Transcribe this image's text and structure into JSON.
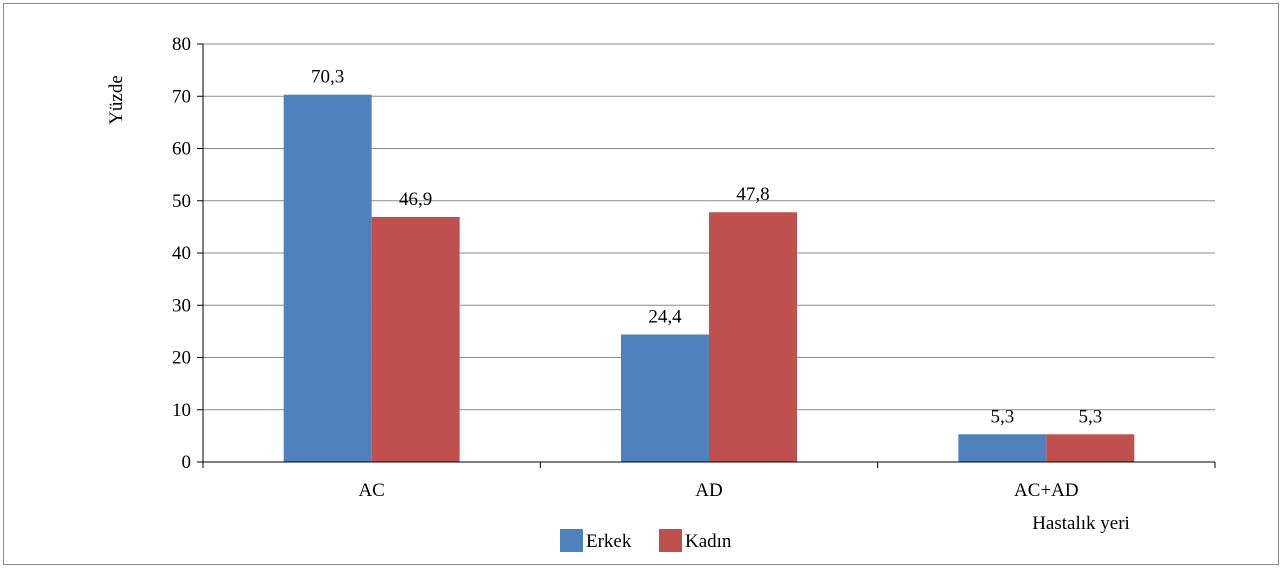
{
  "chart_data": {
    "type": "bar",
    "categories": [
      "AC",
      "AD",
      "AC+AD"
    ],
    "series": [
      {
        "name": "Erkek",
        "values": [
          70.3,
          24.4,
          5.3
        ],
        "labels": [
          "70,3",
          "24,4",
          "5,3"
        ],
        "color": "#4f81bd"
      },
      {
        "name": "Kadın",
        "values": [
          46.9,
          47.8,
          5.3
        ],
        "labels": [
          "46,9",
          "47,8",
          "5,3"
        ],
        "color": "#c0504d"
      }
    ],
    "ylabel": "Yüzde",
    "xlabel": "Hastalık yeri",
    "ylim": [
      0,
      80
    ],
    "yticks": [
      0,
      10,
      20,
      30,
      40,
      50,
      60,
      70,
      80
    ],
    "grid": true,
    "legend_position": "bottom"
  }
}
